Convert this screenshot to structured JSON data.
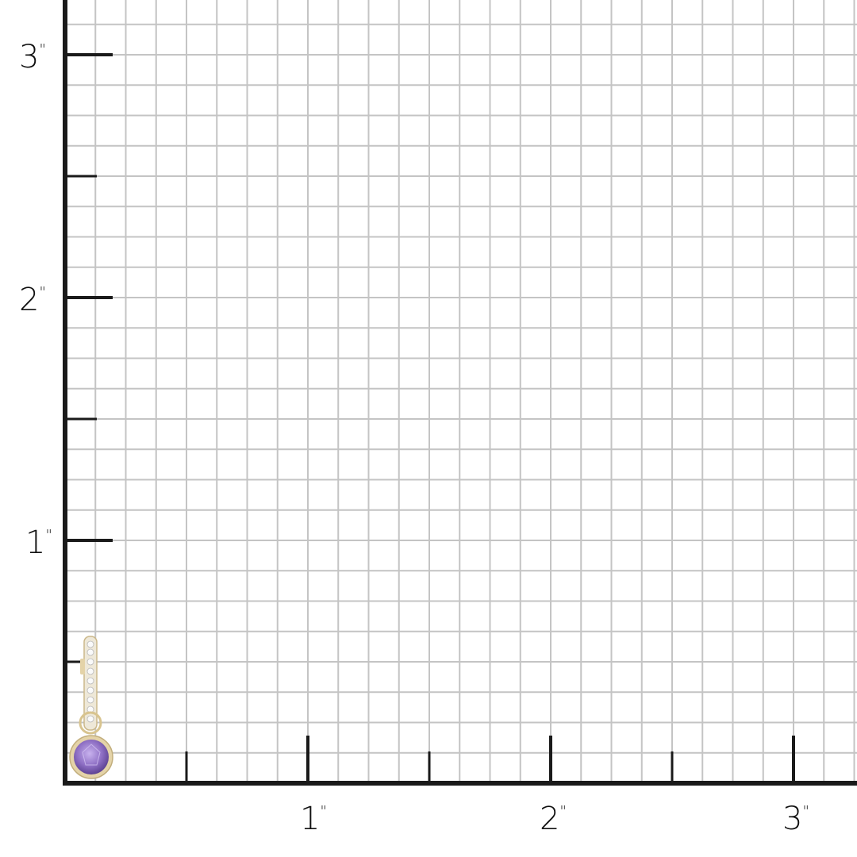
{
  "scale": {
    "unit_mark": "\"",
    "x_labels": [
      "1",
      "2",
      "3"
    ],
    "y_labels": [
      "1",
      "2",
      "3"
    ],
    "subdivisions_per_inch": 8
  },
  "product": {
    "type": "earring-charm",
    "stone_color": "#8e6fc4",
    "metal_color": "#e4d3a8"
  },
  "colors": {
    "grid": "#c4c4c4",
    "axis": "#1a1a1a"
  }
}
